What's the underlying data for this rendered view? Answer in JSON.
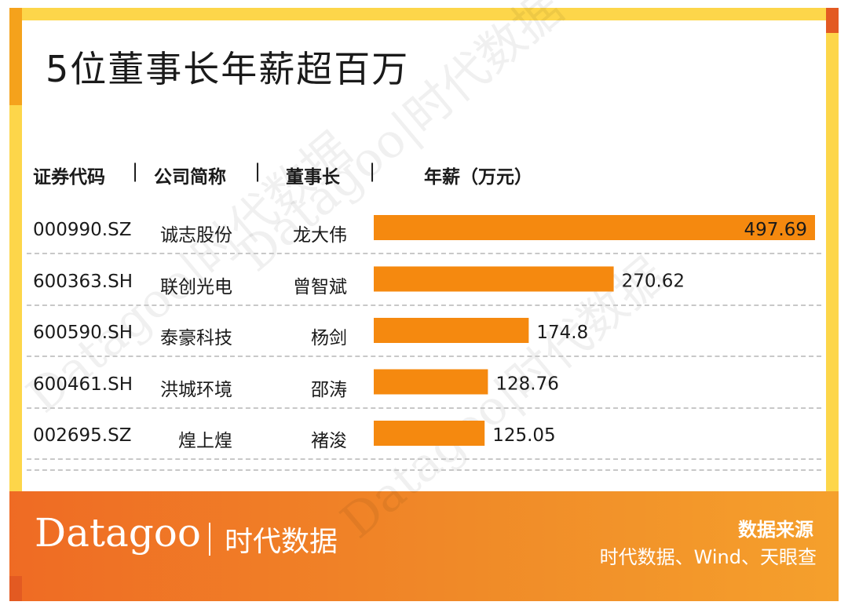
{
  "title": "5位董事长年薪超百万",
  "headers": {
    "code": "证券代码",
    "company": "公司简称",
    "chairman": "董事长",
    "salary": "年薪（万元）",
    "separator": "|"
  },
  "footer": {
    "logo_en": "Datagoo",
    "logo_cn": "时代数据",
    "source_title": "数据来源",
    "source_text": "时代数据、Wind、天眼查"
  },
  "watermark": "Datagoo|时代数据",
  "colors": {
    "bar": "#F5890F",
    "border": "#FDD64A",
    "footer": "#EF6B24"
  },
  "chart_data": {
    "type": "bar",
    "orientation": "horizontal",
    "title": "5位董事长年薪超百万",
    "rows": [
      {
        "code": "000990.SZ",
        "company": "诚志股份",
        "chairman": "龙大伟",
        "value": 497.69,
        "label": "497.69"
      },
      {
        "code": "600363.SH",
        "company": "联创光电",
        "chairman": "曾智斌",
        "value": 270.62,
        "label": "270.62"
      },
      {
        "code": "600590.SH",
        "company": "泰豪科技",
        "chairman": "杨剑",
        "value": 174.8,
        "label": "174.8"
      },
      {
        "code": "600461.SH",
        "company": "洪城环境",
        "chairman": "邵涛",
        "value": 128.76,
        "label": "128.76"
      },
      {
        "code": "002695.SZ",
        "company": "煌上煌",
        "chairman": "褚浚",
        "value": 125.05,
        "label": "125.05"
      }
    ],
    "xlim": [
      0,
      497.69
    ],
    "grid": false,
    "legend": "none"
  }
}
